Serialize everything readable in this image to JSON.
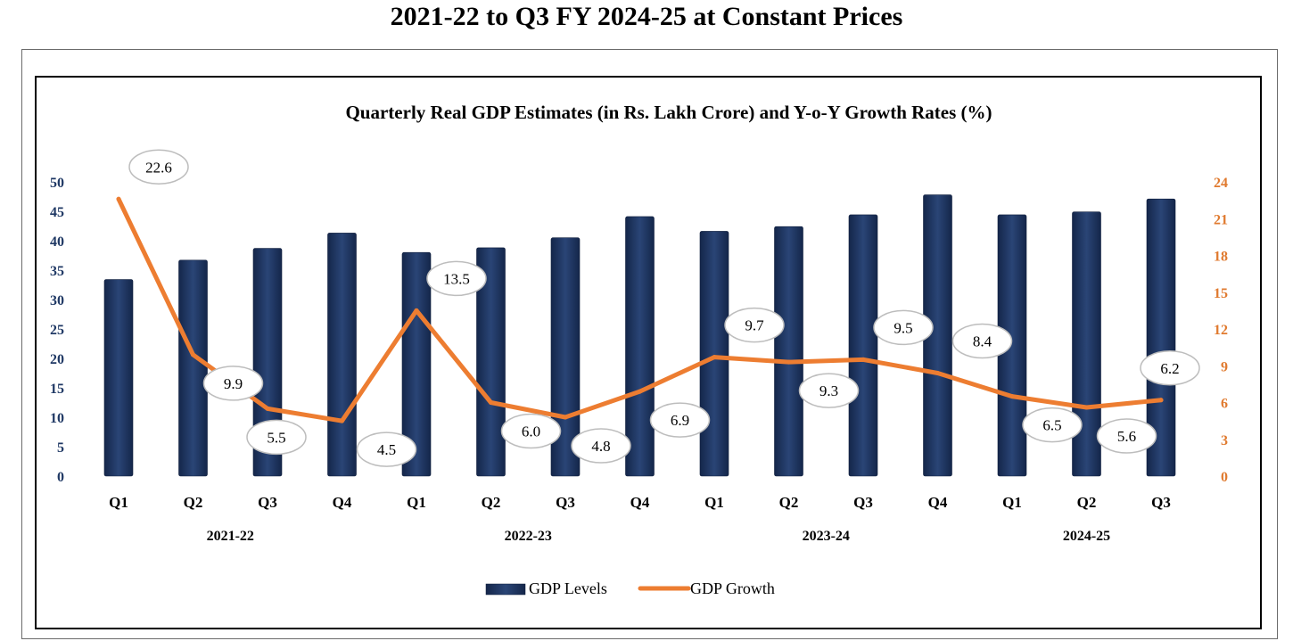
{
  "page_title": "2021-22 to Q3 FY 2024-25 at Constant Prices",
  "colors": {
    "bar": "#1f3864",
    "line": "#ed7d31",
    "left_axis": "#1f3864",
    "right_axis": "#e07a2f"
  },
  "chart_data": {
    "type": "bar",
    "title": "Quarterly Real GDP Estimates (in Rs. Lakh Crore) and Y-o-Y Growth Rates (%)",
    "categories": [
      "Q1",
      "Q2",
      "Q3",
      "Q4",
      "Q1",
      "Q2",
      "Q3",
      "Q4",
      "Q1",
      "Q2",
      "Q3",
      "Q4",
      "Q1",
      "Q2",
      "Q3"
    ],
    "groups": [
      {
        "label": "2021-22",
        "start": 0,
        "end": 3
      },
      {
        "label": "2022-23",
        "start": 4,
        "end": 7
      },
      {
        "label": "2023-24",
        "start": 8,
        "end": 11
      },
      {
        "label": "2024-25",
        "start": 12,
        "end": 14
      }
    ],
    "series": [
      {
        "name": "GDP Levels",
        "type": "bar",
        "axis": "left",
        "values": [
          33.4,
          36.7,
          38.7,
          41.3,
          38.0,
          38.8,
          40.5,
          44.1,
          41.6,
          42.4,
          44.4,
          47.8,
          44.4,
          44.9,
          47.1
        ]
      },
      {
        "name": "GDP Growth",
        "type": "line",
        "axis": "right",
        "values": [
          22.6,
          9.9,
          5.5,
          4.5,
          13.5,
          6.0,
          4.8,
          6.9,
          9.7,
          9.3,
          9.5,
          8.4,
          6.5,
          5.6,
          6.2
        ],
        "labels": [
          "22.6",
          "9.9",
          "5.5",
          "4.5",
          "13.5",
          "6.0",
          "4.8",
          "6.9",
          "9.7",
          "9.3",
          "9.5",
          "8.4",
          "6.5",
          "5.6",
          "6.2"
        ]
      }
    ],
    "y_left": {
      "range": [
        0,
        50
      ],
      "ticks": [
        "0",
        "5",
        "10",
        "15",
        "20",
        "25",
        "30",
        "35",
        "40",
        "45",
        "50"
      ]
    },
    "y_right": {
      "range": [
        0,
        24
      ],
      "ticks": [
        "0",
        "3",
        "6",
        "9",
        "12",
        "15",
        "18",
        "21",
        "24"
      ]
    },
    "legend": {
      "position": "bottom",
      "items": [
        "GDP Levels",
        "GDP Growth"
      ]
    },
    "grid": false
  }
}
